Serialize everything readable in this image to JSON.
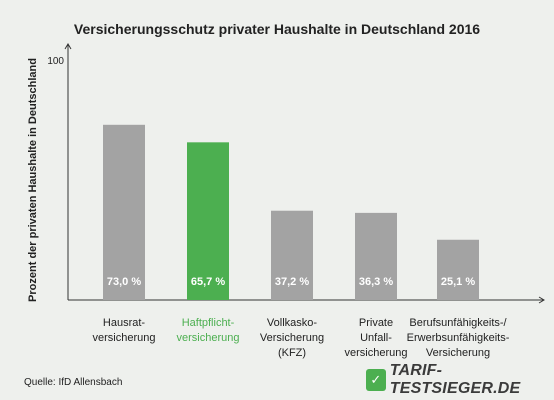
{
  "chart_data": {
    "type": "bar",
    "title": "Versicherungsschutz privater Haushalte in Deutschland 2016",
    "ylabel": "Prozent der privaten Haushalte in Deutschland",
    "xlabel": "",
    "ylim": [
      0,
      100
    ],
    "y_ticks": [
      "100"
    ],
    "categories": [
      "Hausrat-\nversicherung",
      "Haftpflicht-\nversicherung",
      "Vollkasko-\nVersicherung\n(KFZ)",
      "Private\nUnfall-\nversicherung",
      "Berufsunfähigkeits-/\nErwerbsunfähigkeits-\nVersicherung"
    ],
    "values": [
      73.0,
      65.7,
      37.2,
      36.3,
      25.1
    ],
    "value_labels": [
      "73,0 %",
      "65,7 %",
      "37,2 %",
      "36,3 %",
      "25,1 %"
    ],
    "highlight_index": 1,
    "colors": {
      "bar": "#a3a3a3",
      "highlight": "#4caf50",
      "highlight_text": "#4caf50",
      "axis": "#333333",
      "background": "#eef0ed"
    },
    "grid": false
  },
  "footer": {
    "source": "Quelle: IfD Allensbach",
    "logo_text": "TARIF-TESTSIEGER.DE",
    "logo_icon": "tarif-testsieger-logo-icon"
  }
}
